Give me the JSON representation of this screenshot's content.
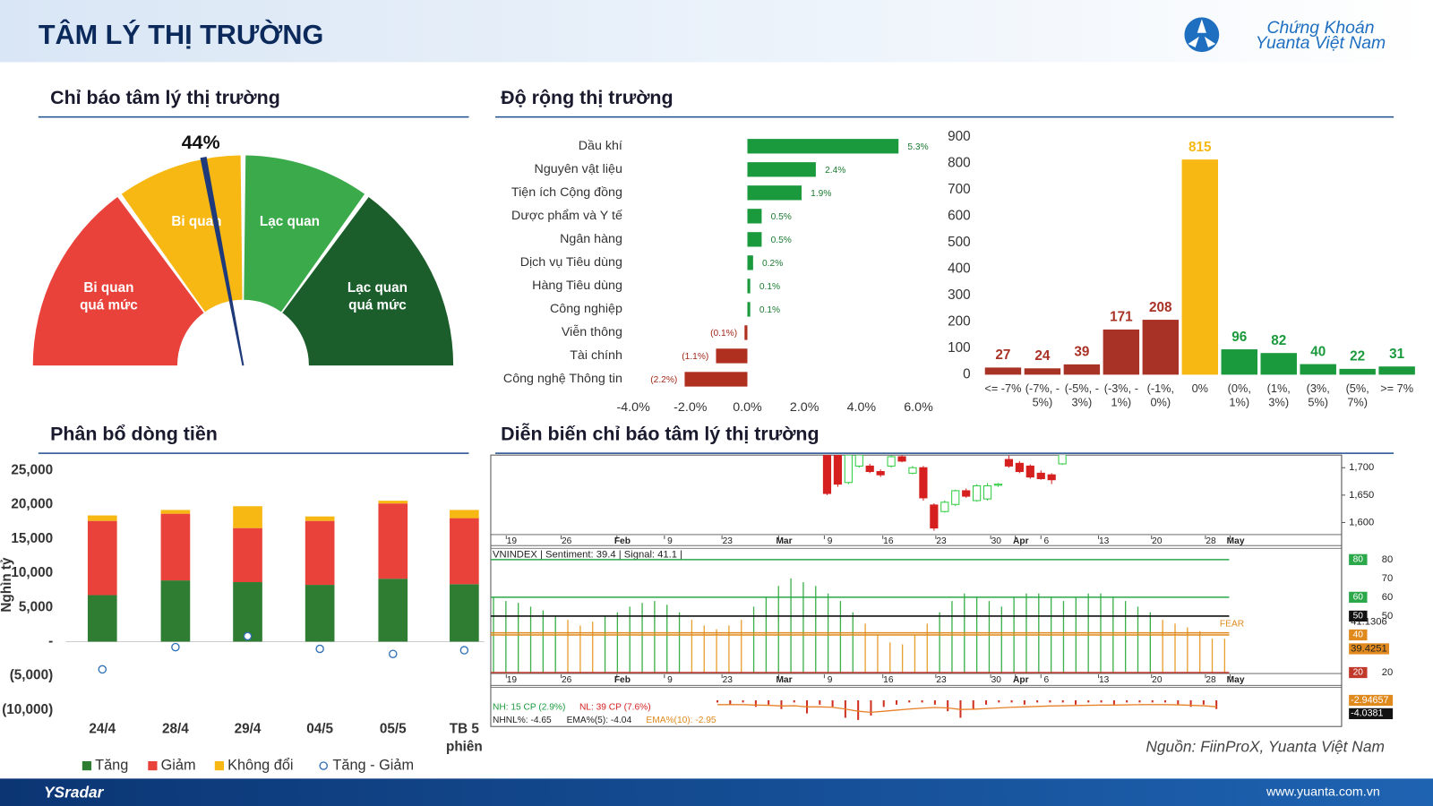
{
  "header": {
    "title": "TÂM LÝ THỊ TRƯỜNG",
    "logo_line1": "Chứng Khoán",
    "logo_line2": "Yuanta Việt Nam"
  },
  "chart_data": [
    {
      "type": "gauge",
      "title": "Chỉ báo tâm lý thị trường",
      "value": 44,
      "value_label": "44%",
      "ylim": [
        0,
        100
      ],
      "needle_color": "#1f3a7a",
      "segments": [
        {
          "from": 0,
          "to": 30,
          "label": [
            "Bi quan",
            "quá mức"
          ],
          "color": "#e8423a"
        },
        {
          "from": 30,
          "to": 50,
          "label": [
            "Bi quan"
          ],
          "color": "#f8b814"
        },
        {
          "from": 50,
          "to": 70,
          "label": [
            "Lạc quan"
          ],
          "color": "#3aaa4a"
        },
        {
          "from": 70,
          "to": 100,
          "label": [
            "Lạc quan",
            "quá mức"
          ],
          "color": "#1b5e2b"
        }
      ]
    },
    {
      "type": "hbar",
      "title": "Độ rộng thị trường",
      "categories": [
        "Dầu khí",
        "Nguyên vật liệu",
        "Tiện ích Cộng đồng",
        "Dược phẩm và Y tế",
        "Ngân hàng",
        "Dịch vụ Tiêu dùng",
        "Hàng Tiêu dùng",
        "Công nghiệp",
        "Viễn thông",
        "Tài chính",
        "Công nghệ Thông tin"
      ],
      "values": [
        5.3,
        2.4,
        1.9,
        0.5,
        0.5,
        0.2,
        0.1,
        0.1,
        -0.1,
        -1.1,
        -2.2
      ],
      "value_labels": [
        "5.3%",
        "2.4%",
        "1.9%",
        "0.5%",
        "0.5%",
        "0.2%",
        "0.1%",
        "0.1%",
        "(0.1%)",
        "(1.1%)",
        "(2.2%)"
      ],
      "color": "#1a9a3c",
      "negative_color": "#b03020",
      "xlim": [
        -4,
        6
      ],
      "xticks": [
        {
          "value": -4,
          "label": "-4.0%"
        },
        {
          "value": -2,
          "label": "-2.0%"
        },
        {
          "value": 0,
          "label": "0.0%"
        },
        {
          "value": 2,
          "label": "2.0%"
        },
        {
          "value": 4,
          "label": "4.0%"
        },
        {
          "value": 6,
          "label": "6.0%"
        }
      ]
    },
    {
      "type": "bar",
      "categories": [
        [
          "<= -7%"
        ],
        [
          "(-7%, -",
          "5%)"
        ],
        [
          "(-5%, -",
          "3%)"
        ],
        [
          "(-3%, -",
          "1%)"
        ],
        [
          "(-1%,",
          "0%)"
        ],
        [
          "0%"
        ],
        [
          "(0%,",
          "1%)"
        ],
        [
          "(1%,",
          "3%)"
        ],
        [
          "(3%,",
          "5%)"
        ],
        [
          "(5%,",
          "7%)"
        ],
        [
          ">= 7%"
        ]
      ],
      "values": [
        27,
        24,
        39,
        171,
        208,
        815,
        96,
        82,
        40,
        22,
        31
      ],
      "colors": [
        "#a93226",
        "#a93226",
        "#a93226",
        "#a93226",
        "#a93226",
        "#f8b814",
        "#1a9a3c",
        "#1a9a3c",
        "#1a9a3c",
        "#1a9a3c",
        "#1a9a3c"
      ],
      "ylim": [
        0,
        900
      ],
      "yticks": [
        0,
        100,
        200,
        300,
        400,
        500,
        600,
        700,
        800,
        900
      ]
    },
    {
      "type": "stacked_bar",
      "title": "Phân bổ dòng tiền",
      "y_label": "Nghìn tỷ",
      "categories": [
        [
          "24/4"
        ],
        [
          "28/4"
        ],
        [
          "29/4"
        ],
        [
          "04/5"
        ],
        [
          "05/5"
        ],
        [
          "TB 5",
          "phiên"
        ]
      ],
      "series": [
        {
          "name": "Tăng",
          "color": "#2e7d32",
          "values": [
            6800,
            8950,
            8700,
            8300,
            9200,
            8400
          ]
        },
        {
          "name": "Giảm",
          "color": "#e8423a",
          "values": [
            10850,
            9750,
            7900,
            9350,
            11000,
            9650
          ]
        },
        {
          "name": "Không đổi",
          "color": "#f8b814",
          "values": [
            800,
            550,
            3200,
            650,
            400,
            1200
          ]
        },
        {
          "name": "Tăng - Giảm",
          "type": "scatter",
          "color": "#2f6fb5",
          "values": [
            -4050,
            -800,
            800,
            -1050,
            -1800,
            -1250
          ]
        }
      ],
      "ylim": [
        -10000,
        25000
      ],
      "yticks": [
        {
          "value": 25000,
          "label": "25,000"
        },
        {
          "value": 20000,
          "label": "20,000"
        },
        {
          "value": 15000,
          "label": "15,000"
        },
        {
          "value": 10000,
          "label": "10,000"
        },
        {
          "value": 5000,
          "label": "5,000"
        },
        {
          "value": 0,
          "label": "-"
        },
        {
          "value": -5000,
          "label": "(5,000)"
        },
        {
          "value": -10000,
          "label": "(10,000)"
        }
      ]
    },
    {
      "type": "sentiment_panel",
      "title": "Diễn biến chỉ báo tâm lý thị trường",
      "x_labels": [
        "19",
        "26",
        "Feb",
        "9",
        "23",
        "Mar",
        "9",
        "16",
        "23",
        "30",
        "Apr",
        "6",
        "13",
        "20",
        "28",
        "May"
      ],
      "price": {
        "candles": [
          [
            1723,
            1723,
            1650,
            1653
          ],
          [
            1728,
            1730,
            1665,
            1670
          ],
          [
            1673,
            1725,
            1670,
            1723
          ],
          [
            1703,
            1725,
            1700,
            1723
          ],
          [
            1703,
            1707,
            1690,
            1693
          ],
          [
            1693,
            1697,
            1683,
            1687
          ],
          [
            1703,
            1722,
            1700,
            1720
          ],
          [
            1720,
            1725,
            1710,
            1712
          ],
          [
            1690,
            1703,
            1688,
            1700
          ],
          [
            1700,
            1703,
            1640,
            1645
          ],
          [
            1632,
            1635,
            1585,
            1590
          ],
          [
            1620,
            1640,
            1618,
            1637
          ],
          [
            1633,
            1660,
            1630,
            1658
          ],
          [
            1658,
            1662,
            1645,
            1648
          ],
          [
            1640,
            1670,
            1638,
            1667
          ],
          [
            1643,
            1672,
            1640,
            1667
          ],
          [
            1668,
            1672,
            1665,
            1670
          ],
          [
            1715,
            1722,
            1700,
            1703
          ],
          [
            1708,
            1712,
            1690,
            1693
          ],
          [
            1703,
            1706,
            1680,
            1683
          ],
          [
            1690,
            1695,
            1678,
            1680
          ],
          [
            1687,
            1690,
            1670,
            1678
          ],
          [
            1707,
            1728,
            1705,
            1725
          ]
        ],
        "up_color": "#2ecc40",
        "down_color": "#d62020",
        "ylim": [
          1578,
          1723
        ],
        "yticks": [
          {
            "value": 1600,
            "label": "1,600"
          },
          {
            "value": 1650,
            "label": "1,650"
          },
          {
            "value": 1700,
            "label": "1,700"
          }
        ]
      },
      "sentiment": {
        "header": "VNINDEX | Sentiment: 39.4 | Signal: 41.1 |",
        "values": [
          60,
          58,
          57,
          55,
          53,
          50,
          48,
          45,
          47,
          50,
          52,
          55,
          57,
          58,
          56,
          52,
          48,
          45,
          43,
          45,
          48,
          55,
          60,
          66,
          70,
          68,
          66,
          62,
          58,
          52,
          46,
          40,
          36,
          35,
          40,
          46,
          52,
          58,
          62,
          60,
          58,
          55,
          60,
          62,
          62,
          60,
          58,
          60,
          62,
          62,
          60,
          58,
          55,
          52,
          48,
          46,
          44,
          42,
          38,
          38
        ],
        "up_color": "#3cb04a",
        "down_color": "#e8a030",
        "ylim": [
          20,
          86
        ],
        "yticks": [
          20,
          50,
          60,
          70,
          80
        ],
        "levels": [
          {
            "value": 80,
            "color": "#2aa84a"
          },
          {
            "value": 60,
            "color": "#2aa84a"
          },
          {
            "value": 50,
            "color": "#111111"
          },
          {
            "value": 40,
            "color": "#e08a1e"
          },
          {
            "value": 20,
            "color": "#c0392b"
          }
        ],
        "signal": 41.1306,
        "signal_color": "#e08a1e",
        "current": 39.4251,
        "annotation": "FEAR"
      },
      "breadth": {
        "labels": [
          "NH: 15 CP (2.9%)",
          "NL: 39 CP (7.6%)",
          "NHNL%: -4.65",
          "EMA%(5): -4.04",
          "EMA%(10): -2.95"
        ],
        "label_colors": [
          "#1a9a3c",
          "#d62020",
          "#222222",
          "#222222",
          "#e08a1e"
        ],
        "nhnl": [
          -1,
          -2,
          -1,
          -3,
          -2,
          -4,
          -1,
          -6,
          -2,
          -3,
          -8,
          -9,
          -7,
          -3,
          -2,
          -1,
          -1,
          -2,
          -5,
          -8,
          -4,
          -2,
          -1,
          -1,
          -2,
          -1,
          -1,
          -1,
          -2,
          -1,
          -1,
          -2,
          -1,
          -1,
          -1,
          -1,
          -2,
          -3,
          -2,
          -4
        ],
        "nhnl_color": "#d03020",
        "ema10": [
          -2,
          -2,
          -2,
          -2.2,
          -2.3,
          -2.6,
          -2.5,
          -3,
          -3,
          -3.2,
          -4,
          -5,
          -5.5,
          -5,
          -4.5,
          -4,
          -3.6,
          -3.3,
          -3.5,
          -4.2,
          -4.1,
          -3.8,
          -3.5,
          -3.2,
          -3,
          -2.8,
          -2.6,
          -2.5,
          -2.4,
          -2.3,
          -2.2,
          -2.2,
          -2.1,
          -2,
          -2,
          -2,
          -2.1,
          -2.3,
          -2.5,
          -2.95
        ],
        "ema10_color": "#e8822a",
        "ylim": [
          -12,
          6
        ],
        "marks": [
          {
            "value": -2.94657,
            "color": "#e08a1e"
          },
          {
            "value": -4.0381,
            "color": "#111111"
          }
        ]
      }
    }
  ],
  "footer": {
    "source": "Nguồn: FiinProX, Yuanta Việt Nam",
    "brand": "YSradar",
    "website": "www.yuanta.com.vn"
  }
}
